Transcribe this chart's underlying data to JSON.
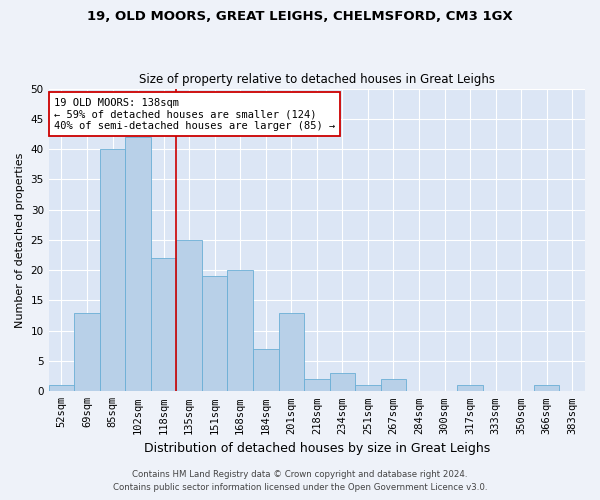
{
  "title_line1": "19, OLD MOORS, GREAT LEIGHS, CHELMSFORD, CM3 1GX",
  "title_line2": "Size of property relative to detached houses in Great Leighs",
  "xlabel": "Distribution of detached houses by size in Great Leighs",
  "ylabel": "Number of detached properties",
  "categories": [
    "52sqm",
    "69sqm",
    "85sqm",
    "102sqm",
    "118sqm",
    "135sqm",
    "151sqm",
    "168sqm",
    "184sqm",
    "201sqm",
    "218sqm",
    "234sqm",
    "251sqm",
    "267sqm",
    "284sqm",
    "300sqm",
    "317sqm",
    "333sqm",
    "350sqm",
    "366sqm",
    "383sqm"
  ],
  "values": [
    1,
    13,
    40,
    42,
    22,
    25,
    19,
    20,
    7,
    13,
    2,
    3,
    1,
    2,
    0,
    0,
    1,
    0,
    0,
    1,
    0
  ],
  "bar_color": "#b8d0e8",
  "bar_edge_color": "#6aaed6",
  "vline_color": "#cc0000",
  "vline_x_index": 4.5,
  "annotation_text": "19 OLD MOORS: 138sqm\n← 59% of detached houses are smaller (124)\n40% of semi-detached houses are larger (85) →",
  "annotation_box_color": "#ffffff",
  "annotation_box_edge": "#cc0000",
  "ylim": [
    0,
    50
  ],
  "yticks": [
    0,
    5,
    10,
    15,
    20,
    25,
    30,
    35,
    40,
    45,
    50
  ],
  "fig_background": "#eef2f9",
  "ax_background": "#dce6f5",
  "grid_color": "#ffffff",
  "footer_line1": "Contains HM Land Registry data © Crown copyright and database right 2024.",
  "footer_line2": "Contains public sector information licensed under the Open Government Licence v3.0.",
  "title1_fontsize": 9.5,
  "title2_fontsize": 8.5,
  "xlabel_fontsize": 9,
  "ylabel_fontsize": 8,
  "tick_fontsize": 7.5,
  "annot_fontsize": 7.5,
  "footer_fontsize": 6.2
}
